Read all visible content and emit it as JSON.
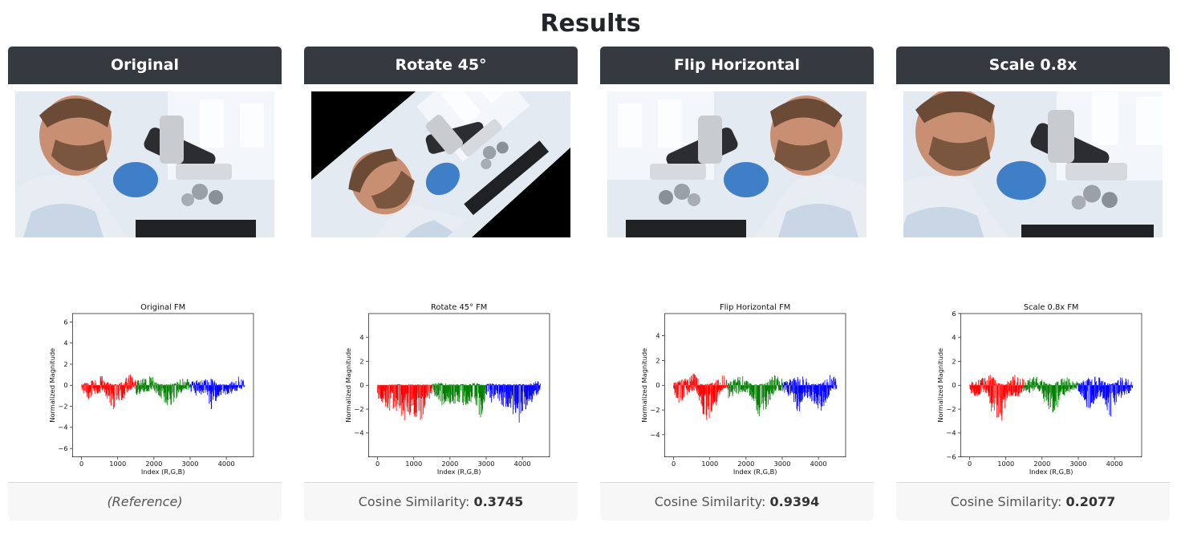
{
  "page": {
    "title": "Results"
  },
  "panels": [
    {
      "header": "Original",
      "image_alt": "scientist-with-microscope",
      "transform": "original",
      "footer": {
        "reference": "(Reference)"
      }
    },
    {
      "header": "Rotate 45°",
      "image_alt": "scientist-with-microscope-rotated",
      "transform": "rotate",
      "footer": {
        "label": "Cosine Similarity:",
        "value": "0.3745"
      }
    },
    {
      "header": "Flip Horizontal",
      "image_alt": "scientist-with-microscope-flipped",
      "transform": "flip",
      "footer": {
        "label": "Cosine Similarity:",
        "value": "0.9394"
      }
    },
    {
      "header": "Scale 0.8x",
      "image_alt": "scientist-with-microscope-scaled",
      "transform": "scale",
      "footer": {
        "label": "Cosine Similarity:",
        "value": "0.2077"
      }
    }
  ],
  "chart_data": [
    {
      "type": "bar",
      "title": "Original FM",
      "xlabel": "Index (R,G,B)",
      "ylabel": "Normalized Magnitude",
      "xlim": [
        -250,
        4750
      ],
      "ylim": [
        -6.8,
        6.8
      ],
      "xticks": [
        0,
        1000,
        2000,
        3000,
        4000
      ],
      "yticks": [
        -6,
        -4,
        -2,
        0,
        2,
        4,
        6
      ],
      "series": [
        {
          "color": "#ff0000",
          "x_range": [
            0,
            1500
          ],
          "envelope_x": [
            0,
            150,
            300,
            450,
            600,
            750,
            900,
            1050,
            1200,
            1350,
            1500
          ],
          "envelope_pos": [
            0.1,
            0.3,
            0.5,
            0.7,
            1.0,
            0.2,
            0.1,
            0.2,
            0.6,
            1.1,
            0.5
          ],
          "envelope_neg": [
            -0.4,
            -1.5,
            -1.2,
            -0.8,
            -0.6,
            -1.6,
            -2.4,
            -2.0,
            -1.2,
            -0.5,
            -0.3
          ]
        },
        {
          "color": "#008000",
          "x_range": [
            1500,
            3000
          ],
          "envelope_x": [
            1500,
            1650,
            1800,
            1950,
            2100,
            2250,
            2400,
            2550,
            2700,
            2850,
            3000
          ],
          "envelope_pos": [
            0.4,
            0.6,
            0.8,
            0.9,
            0.2,
            0.1,
            0.1,
            0.2,
            0.5,
            0.9,
            0.4
          ],
          "envelope_neg": [
            -1.0,
            -0.9,
            -0.7,
            -0.5,
            -0.9,
            -1.5,
            -2.2,
            -1.8,
            -1.0,
            -0.4,
            -0.5
          ]
        },
        {
          "color": "#0000ff",
          "x_range": [
            3000,
            4500
          ],
          "envelope_x": [
            3000,
            3150,
            3300,
            3450,
            3600,
            3750,
            3900,
            4050,
            4200,
            4350,
            4500
          ],
          "envelope_pos": [
            0.3,
            0.5,
            0.6,
            0.8,
            0.9,
            0.2,
            0.1,
            0.2,
            0.5,
            1.1,
            0.5
          ],
          "envelope_neg": [
            -0.6,
            -1.0,
            -0.9,
            -0.7,
            -2.8,
            -1.2,
            -1.1,
            -0.9,
            -0.8,
            -0.4,
            -0.3
          ]
        }
      ]
    },
    {
      "type": "bar",
      "title": "Rotate 45° FM",
      "xlabel": "Index (R,G,B)",
      "ylabel": "Normalized Magnitude",
      "xlim": [
        -250,
        4750
      ],
      "ylim": [
        -6.0,
        6.0
      ],
      "xticks": [
        0,
        1000,
        2000,
        3000,
        4000
      ],
      "yticks": [
        -4,
        -2,
        0,
        2,
        4
      ],
      "series": [
        {
          "color": "#ff0000",
          "x_range": [
            0,
            1500
          ],
          "envelope_x": [
            0,
            150,
            300,
            450,
            600,
            750,
            900,
            1050,
            1200,
            1350,
            1500
          ],
          "envelope_pos": [
            0.05,
            0.05,
            0.05,
            0.1,
            0.1,
            0.05,
            0.1,
            0.1,
            0.05,
            0.1,
            0.05
          ],
          "envelope_neg": [
            -1.2,
            -1.6,
            -2.2,
            -2.0,
            -2.4,
            -3.0,
            -2.5,
            -2.8,
            -3.0,
            -1.8,
            -0.8
          ]
        },
        {
          "color": "#008000",
          "x_range": [
            1500,
            3000
          ],
          "envelope_x": [
            1500,
            1650,
            1800,
            1950,
            2100,
            2250,
            2400,
            2550,
            2700,
            2850,
            3000
          ],
          "envelope_pos": [
            0.1,
            0.2,
            0.2,
            0.15,
            0.1,
            0.1,
            0.1,
            0.2,
            0.2,
            0.1,
            0.05
          ],
          "envelope_neg": [
            -0.8,
            -1.4,
            -1.8,
            -1.5,
            -2.0,
            -2.2,
            -2.0,
            -1.4,
            -1.6,
            -3.0,
            -0.8
          ]
        },
        {
          "color": "#0000ff",
          "x_range": [
            3000,
            4500
          ],
          "envelope_x": [
            3000,
            3150,
            3300,
            3450,
            3600,
            3750,
            3900,
            4050,
            4200,
            4350,
            4500
          ],
          "envelope_pos": [
            0.1,
            0.2,
            0.1,
            0.1,
            0.1,
            0.1,
            0.1,
            0.1,
            0.1,
            0.4,
            0.3
          ],
          "envelope_neg": [
            -0.8,
            -1.5,
            -1.2,
            -2.0,
            -1.8,
            -2.5,
            -3.4,
            -2.2,
            -1.8,
            -1.0,
            -0.6
          ]
        }
      ]
    },
    {
      "type": "bar",
      "title": "Flip Horizontal FM",
      "xlabel": "Index (R,G,B)",
      "ylabel": "Normalized Magnitude",
      "xlim": [
        -250,
        4750
      ],
      "ylim": [
        -5.8,
        5.8
      ],
      "xticks": [
        0,
        1000,
        2000,
        3000,
        4000
      ],
      "yticks": [
        -4,
        -2,
        0,
        2,
        4
      ],
      "series": [
        {
          "color": "#ff0000",
          "x_range": [
            0,
            1500
          ],
          "envelope_x": [
            0,
            150,
            300,
            450,
            600,
            750,
            900,
            1050,
            1200,
            1350,
            1500
          ],
          "envelope_pos": [
            0.2,
            0.4,
            0.6,
            0.9,
            1.1,
            0.2,
            0.1,
            0.2,
            0.6,
            1.0,
            0.4
          ],
          "envelope_neg": [
            -0.6,
            -1.5,
            -1.0,
            -0.6,
            -0.4,
            -1.8,
            -3.2,
            -2.6,
            -1.4,
            -0.5,
            -0.3
          ]
        },
        {
          "color": "#008000",
          "x_range": [
            1500,
            3000
          ],
          "envelope_x": [
            1500,
            1650,
            1800,
            1950,
            2100,
            2250,
            2400,
            2550,
            2700,
            2850,
            3000
          ],
          "envelope_pos": [
            0.3,
            0.5,
            0.7,
            0.9,
            0.2,
            0.1,
            0.1,
            0.2,
            0.6,
            1.0,
            0.5
          ],
          "envelope_neg": [
            -1.1,
            -0.9,
            -0.7,
            -0.5,
            -0.9,
            -1.6,
            -3.0,
            -2.0,
            -1.0,
            -0.4,
            -0.6
          ]
        },
        {
          "color": "#0000ff",
          "x_range": [
            3000,
            4500
          ],
          "envelope_x": [
            3000,
            3150,
            3300,
            3450,
            3600,
            3750,
            3900,
            4050,
            4200,
            4350,
            4500
          ],
          "envelope_pos": [
            0.3,
            0.5,
            0.6,
            0.7,
            0.9,
            0.2,
            0.1,
            0.2,
            0.5,
            1.1,
            0.5
          ],
          "envelope_neg": [
            -0.5,
            -0.9,
            -1.2,
            -2.4,
            -1.0,
            -1.1,
            -1.6,
            -2.6,
            -1.4,
            -0.5,
            -0.3
          ]
        }
      ]
    },
    {
      "type": "bar",
      "title": "Scale 0.8x FM",
      "xlabel": "Index (R,G,B)",
      "ylabel": "Normalized Magnitude",
      "xlim": [
        -250,
        4750
      ],
      "ylim": [
        -6.0,
        6.0
      ],
      "xticks": [
        0,
        1000,
        2000,
        3000,
        4000
      ],
      "yticks": [
        -6,
        -4,
        -2,
        0,
        2,
        4,
        6
      ],
      "series": [
        {
          "color": "#ff0000",
          "x_range": [
            0,
            1500
          ],
          "envelope_x": [
            0,
            150,
            300,
            450,
            600,
            750,
            900,
            1050,
            1200,
            1350,
            1500
          ],
          "envelope_pos": [
            0.2,
            0.4,
            0.6,
            0.8,
            1.0,
            0.2,
            0.1,
            0.4,
            0.9,
            1.0,
            0.5
          ],
          "envelope_neg": [
            -0.6,
            -1.0,
            -0.8,
            -0.6,
            -2.2,
            -3.4,
            -3.0,
            -1.4,
            -0.8,
            -1.2,
            -0.4
          ]
        },
        {
          "color": "#008000",
          "x_range": [
            1500,
            3000
          ],
          "envelope_x": [
            1500,
            1650,
            1800,
            1950,
            2100,
            2250,
            2400,
            2550,
            2700,
            2850,
            3000
          ],
          "envelope_pos": [
            0.4,
            0.6,
            0.8,
            0.6,
            0.2,
            0.1,
            0.4,
            0.8,
            0.9,
            0.5,
            0.3
          ],
          "envelope_neg": [
            -0.5,
            -0.7,
            -0.6,
            -0.5,
            -1.8,
            -2.4,
            -2.0,
            -1.2,
            -0.6,
            -0.5,
            -0.4
          ]
        },
        {
          "color": "#0000ff",
          "x_range": [
            3000,
            4500
          ],
          "envelope_x": [
            3000,
            3150,
            3300,
            3450,
            3600,
            3750,
            3900,
            4050,
            4200,
            4350,
            4500
          ],
          "envelope_pos": [
            0.2,
            0.5,
            0.7,
            0.9,
            0.8,
            0.3,
            0.1,
            0.3,
            0.8,
            0.6,
            0.4
          ],
          "envelope_neg": [
            -0.6,
            -1.2,
            -2.4,
            -1.4,
            -1.0,
            -2.0,
            -2.8,
            -1.6,
            -1.0,
            -0.8,
            -0.5
          ]
        }
      ]
    }
  ]
}
